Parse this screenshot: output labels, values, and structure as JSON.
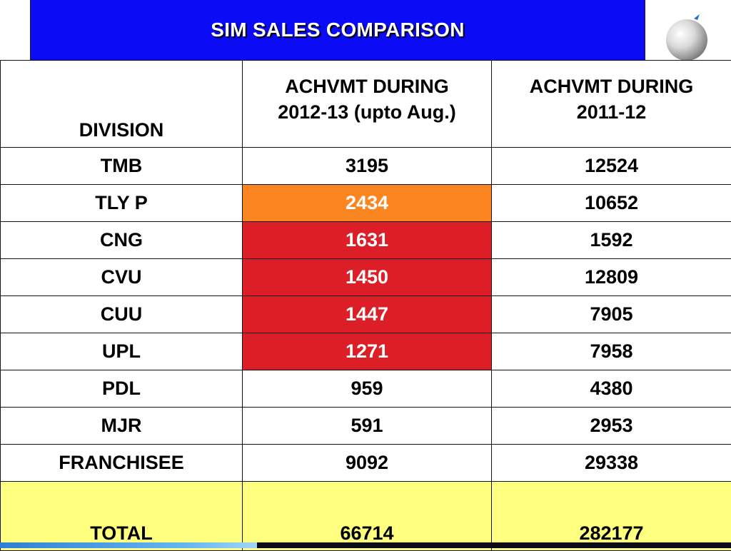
{
  "slide": {
    "title": "SIM SALES COMPARISON",
    "logo_icon": "globe-logo-icon"
  },
  "table": {
    "headers": [
      "DIVISION",
      "ACHVMT DURING",
      "2012-13 (upto Aug.)",
      "ACHVMT DURING",
      "2011-12"
    ],
    "header_division": "DIVISION",
    "header_col2_line1": "ACHVMT DURING",
    "header_col2_line2": "2012-13 (upto Aug.)",
    "header_col3_line1": "ACHVMT DURING",
    "header_col3_line2": "2011-12",
    "rows": [
      {
        "division": "TMB",
        "achvmt_2012_13": "3195",
        "achvmt_2011_12": "12524",
        "highlight": "none"
      },
      {
        "division": "TLY P",
        "achvmt_2012_13": "2434",
        "achvmt_2011_12": "10652",
        "highlight": "orange"
      },
      {
        "division": "CNG",
        "achvmt_2012_13": "1631",
        "achvmt_2011_12": "1592",
        "highlight": "red"
      },
      {
        "division": "CVU",
        "achvmt_2012_13": "1450",
        "achvmt_2011_12": "12809",
        "highlight": "red"
      },
      {
        "division": "CUU",
        "achvmt_2012_13": "1447",
        "achvmt_2011_12": "7905",
        "highlight": "red"
      },
      {
        "division": "UPL",
        "achvmt_2012_13": "1271",
        "achvmt_2011_12": "7958",
        "highlight": "red"
      },
      {
        "division": "PDL",
        "achvmt_2012_13": "959",
        "achvmt_2011_12": "4380",
        "highlight": "none"
      },
      {
        "division": "MJR",
        "achvmt_2012_13": "591",
        "achvmt_2011_12": "2953",
        "highlight": "none"
      },
      {
        "division": "FRANCHISEE",
        "achvmt_2012_13": "9092",
        "achvmt_2011_12": "29338",
        "highlight": "none"
      }
    ],
    "total": {
      "label": "TOTAL",
      "achvmt_2012_13": "66714",
      "achvmt_2011_12": "282177"
    }
  },
  "colors": {
    "title_bg": "#0b0bf5",
    "orange_highlight": "#fb8521",
    "red_highlight": "#dc1f26",
    "total_row_bg": "#ffff80"
  }
}
